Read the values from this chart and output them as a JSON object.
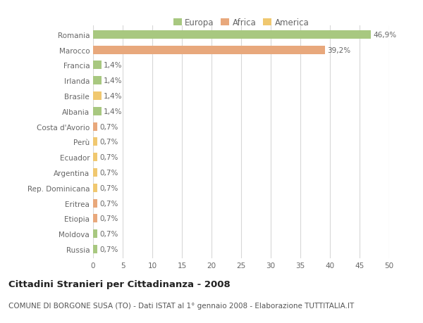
{
  "categories": [
    "Russia",
    "Moldova",
    "Etiopia",
    "Eritrea",
    "Rep. Dominicana",
    "Argentina",
    "Ecuador",
    "Perù",
    "Costa d'Avorio",
    "Albania",
    "Brasile",
    "Irlanda",
    "Francia",
    "Marocco",
    "Romania"
  ],
  "values": [
    0.7,
    0.7,
    0.7,
    0.7,
    0.7,
    0.7,
    0.7,
    0.7,
    0.7,
    1.4,
    1.4,
    1.4,
    1.4,
    39.2,
    46.9
  ],
  "colors": [
    "#a8c880",
    "#a8c880",
    "#e8a87c",
    "#e8a87c",
    "#f0c870",
    "#f0c870",
    "#f0c870",
    "#f0c870",
    "#e8a87c",
    "#a8c880",
    "#f0c870",
    "#a8c880",
    "#a8c880",
    "#e8a87c",
    "#a8c880"
  ],
  "labels": [
    "0,7%",
    "0,7%",
    "0,7%",
    "0,7%",
    "0,7%",
    "0,7%",
    "0,7%",
    "0,7%",
    "0,7%",
    "1,4%",
    "1,4%",
    "1,4%",
    "1,4%",
    "39,2%",
    "46,9%"
  ],
  "xlim": [
    0,
    50
  ],
  "xticks": [
    0,
    5,
    10,
    15,
    20,
    25,
    30,
    35,
    40,
    45,
    50
  ],
  "title": "Cittadini Stranieri per Cittadinanza - 2008",
  "subtitle": "COMUNE DI BORGONE SUSA (TO) - Dati ISTAT al 1° gennaio 2008 - Elaborazione TUTTITALIA.IT",
  "legend_labels": [
    "Europa",
    "Africa",
    "America"
  ],
  "legend_colors": [
    "#a8c880",
    "#e8a87c",
    "#f0c870"
  ],
  "background_color": "#ffffff",
  "grid_color": "#d8d8d8",
  "bar_height": 0.55,
  "title_fontsize": 9.5,
  "subtitle_fontsize": 7.5,
  "label_fontsize": 7.5,
  "tick_fontsize": 7.5,
  "legend_fontsize": 8.5
}
